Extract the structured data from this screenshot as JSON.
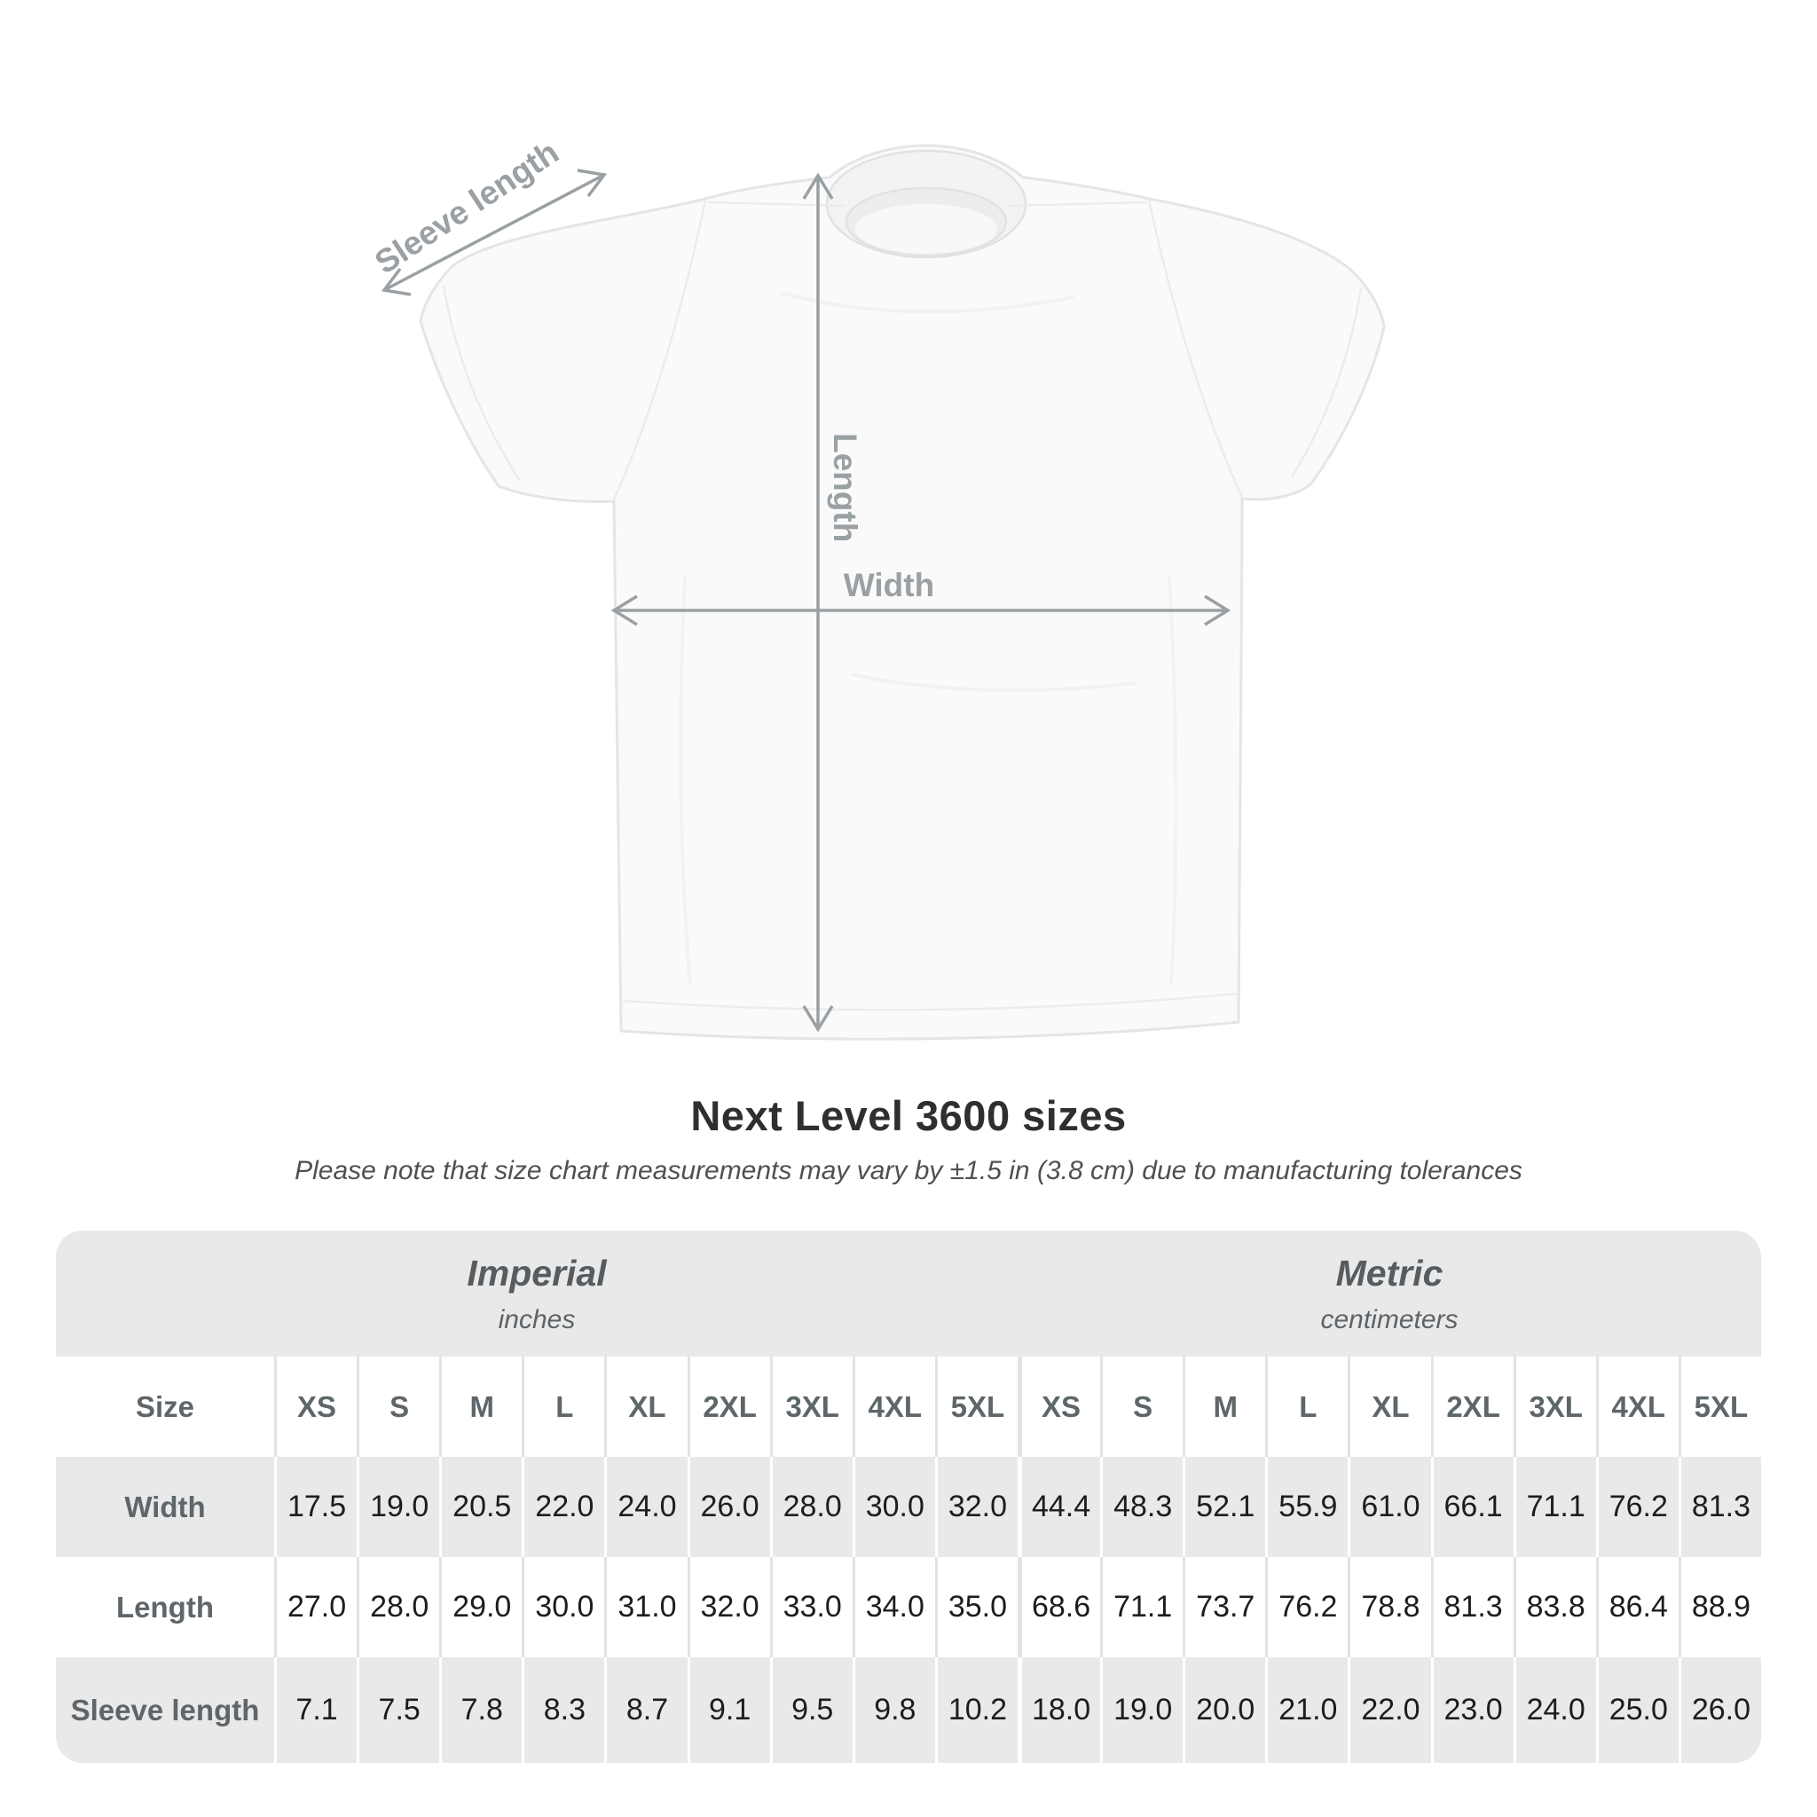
{
  "diagram": {
    "sleeve_label": "Sleeve length",
    "length_label": "Length",
    "width_label": "Width"
  },
  "chart_data": {
    "type": "table",
    "title": "Next Level 3600 sizes",
    "subtitle": "Please note that size chart measurements may vary by ±1.5 in (3.8 cm) due to manufacturing tolerances",
    "size_label": "Size",
    "sizes": [
      "XS",
      "S",
      "M",
      "L",
      "XL",
      "2XL",
      "3XL",
      "4XL",
      "5XL"
    ],
    "groups": [
      {
        "name": "Imperial",
        "unit": "inches"
      },
      {
        "name": "Metric",
        "unit": "centimeters"
      }
    ],
    "rows": [
      {
        "label": "Width",
        "imperial": [
          17.5,
          19.0,
          20.5,
          22.0,
          24.0,
          26.0,
          28.0,
          30.0,
          32.0
        ],
        "metric": [
          44.4,
          48.3,
          52.1,
          55.9,
          61.0,
          66.1,
          71.1,
          76.2,
          81.3
        ]
      },
      {
        "label": "Length",
        "imperial": [
          27.0,
          28.0,
          29.0,
          30.0,
          31.0,
          32.0,
          33.0,
          34.0,
          35.0
        ],
        "metric": [
          68.6,
          71.1,
          73.7,
          76.2,
          78.8,
          81.3,
          83.8,
          86.4,
          88.9
        ]
      },
      {
        "label": "Sleeve length",
        "imperial": [
          7.1,
          7.5,
          7.8,
          8.3,
          8.7,
          9.1,
          9.5,
          9.8,
          10.2
        ],
        "metric": [
          18.0,
          19.0,
          20.0,
          21.0,
          22.0,
          23.0,
          24.0,
          25.0,
          26.0
        ]
      }
    ],
    "layout": {
      "legend": "none",
      "grid": "striped-rows"
    }
  },
  "colors": {
    "arrow_grey": "#9aa0a3",
    "label_grey": "#9aa0a3",
    "band_grey": "#e9e9e9",
    "header_text": "#5e666a",
    "number_text": "#1d1d1d",
    "title_text": "#2d2f30",
    "shirt_fill": "#fafafa",
    "shirt_outline": "#e6e6e6"
  }
}
